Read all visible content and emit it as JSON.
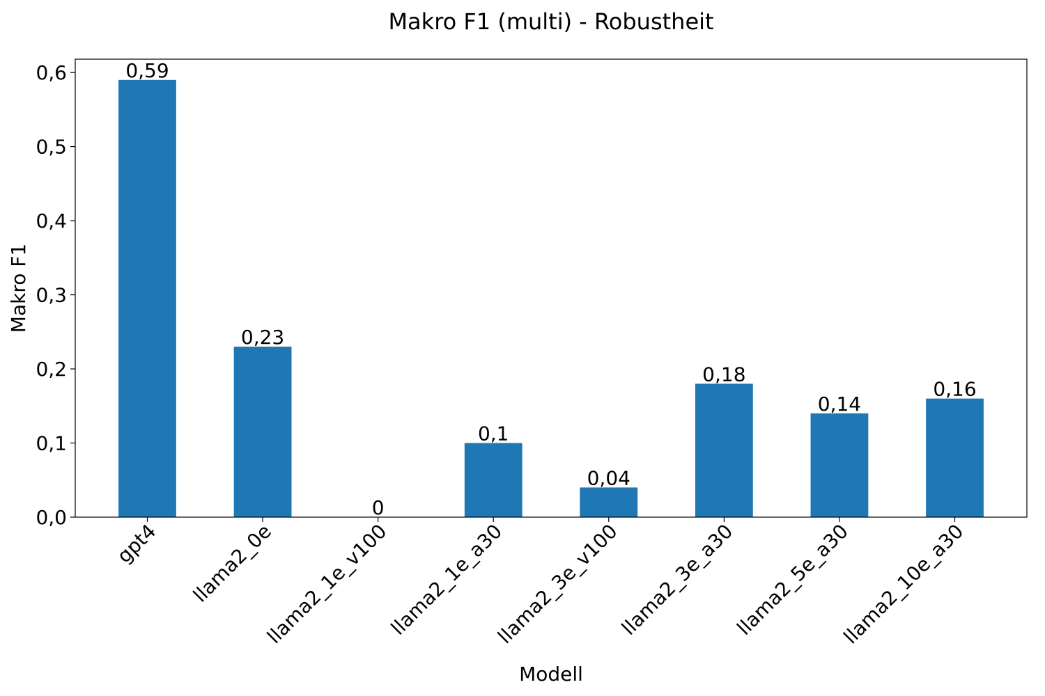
{
  "chart_data": {
    "type": "bar",
    "title": "Makro F1 (multi) - Robustheit",
    "xlabel": "Modell",
    "ylabel": "Makro F1",
    "categories": [
      "gpt4",
      "llama2_0e",
      "llama2_1e_v100",
      "llama2_1e_a30",
      "llama2_3e_v100",
      "llama2_3e_a30",
      "llama2_5e_a30",
      "llama2_10e_a30"
    ],
    "values": [
      0.59,
      0.23,
      0,
      0.1,
      0.04,
      0.18,
      0.14,
      0.16
    ],
    "data_labels": [
      "0,59",
      "0,23",
      "0",
      "0,1",
      "0,04",
      "0,18",
      "0,14",
      "0,16"
    ],
    "yticks": [
      0,
      0.1,
      0.2,
      0.3,
      0.4,
      0.5,
      0.6
    ],
    "ytick_labels": [
      "0,0",
      "0,1",
      "0,2",
      "0,3",
      "0,4",
      "0,5",
      "0,6"
    ],
    "ylim": [
      0,
      0.618
    ],
    "grid": false,
    "legend": "none",
    "bar_color": "#1f77b4",
    "xtick_rotation_deg": 45
  }
}
